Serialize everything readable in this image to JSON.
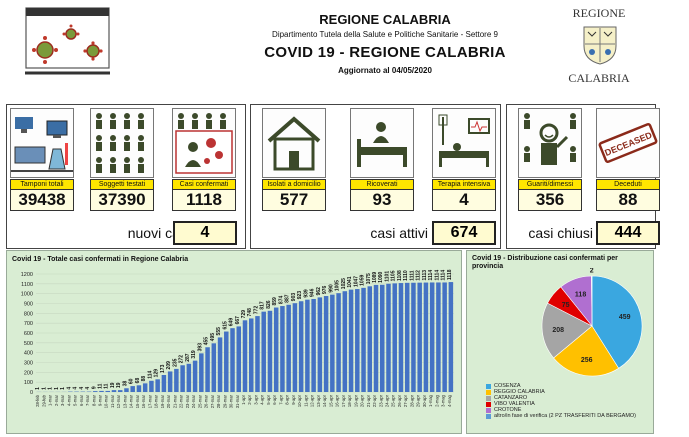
{
  "header": {
    "region": "REGIONE CALABRIA",
    "department": "Dipartimento Tutela della Salute e Politiche Sanitarie - Settore 9",
    "title": "COVID 19 - REGIONE CALABRIA",
    "updated_label": "Aggiornato al",
    "updated_date": "04/05/2020",
    "logo_top": "REGIONE",
    "logo_bottom": "CALABRIA"
  },
  "stats": [
    {
      "label": "Tamponi totali",
      "value": "39438",
      "icon": "lab-icon"
    },
    {
      "label": "Soggetti testati",
      "value": "37390",
      "icon": "people-grid-icon"
    },
    {
      "label": "Casi confermati",
      "value": "1118",
      "icon": "confirmed-case-icon"
    },
    {
      "label": "Isolati a domicilio",
      "value": "577",
      "icon": "house-icon"
    },
    {
      "label": "Ricoverati",
      "value": "93",
      "icon": "hospital-bed-icon"
    },
    {
      "label": "Terapia intensiva",
      "value": "4",
      "icon": "intensive-care-icon"
    },
    {
      "label": "Guariti/dimessi",
      "value": "356",
      "icon": "recovered-icon"
    },
    {
      "label": "Deceduti",
      "value": "88",
      "icon": "deceased-stamp-icon"
    }
  ],
  "summary": {
    "new_label": "nuovi casi",
    "new_value": "4",
    "active_label": "casi attivi",
    "active_value": "674",
    "closed_label": "casi chiusi",
    "closed_value": "444"
  },
  "deceased_stamp": "DECEASED",
  "colors": {
    "accent": "#ffe600",
    "bar": "#4472c4",
    "panel": "#d9edd3"
  },
  "chart_data": [
    {
      "type": "bar",
      "title": "Covid 19 - Totale casi confermati in Regione Calabria",
      "ylim": [
        0,
        1200
      ],
      "yticks": [
        0,
        100,
        200,
        300,
        400,
        500,
        600,
        700,
        800,
        900,
        1000,
        1100,
        1200
      ],
      "grid": true,
      "categories": [
        "28-feb",
        "29-feb",
        "1-mar",
        "2-mar",
        "3-mar",
        "4-mar",
        "5-mar",
        "6-mar",
        "7-mar",
        "8-mar",
        "9-mar",
        "10-mar",
        "11-mar",
        "12-mar",
        "13-mar",
        "14-mar",
        "15-mar",
        "16-mar",
        "17-mar",
        "18-mar",
        "19-mar",
        "20-mar",
        "21-mar",
        "22-mar",
        "23-mar",
        "24-mar",
        "25-mar",
        "26-mar",
        "27-mar",
        "28-mar",
        "29-mar",
        "30-mar",
        "31-mar",
        "1-apr",
        "2-apr",
        "3-apr",
        "4-apr",
        "5-apr",
        "6-apr",
        "7-apr",
        "8-apr",
        "9-apr",
        "10-apr",
        "11-apr",
        "12-apr",
        "13-apr",
        "14-apr",
        "15-apr",
        "16-apr",
        "17-apr",
        "18-apr",
        "19-apr",
        "20-apr",
        "21-apr",
        "22-apr",
        "23-apr",
        "24-apr",
        "25-apr",
        "26-apr",
        "27-apr",
        "28-apr",
        "29-apr",
        "30-apr",
        "1-mag",
        "2-mag",
        "3-mag",
        "4-mag"
      ],
      "values": [
        1,
        1,
        1,
        1,
        1,
        4,
        4,
        4,
        4,
        9,
        11,
        11,
        19,
        19,
        38,
        60,
        68,
        88,
        114,
        129,
        173,
        209,
        235,
        272,
        287,
        319,
        393,
        455,
        495,
        555,
        615,
        649,
        667,
        729,
        748,
        772,
        817,
        826,
        859,
        874,
        887,
        903,
        923,
        939,
        946,
        962,
        976,
        990,
        1005,
        1025,
        1041,
        1047,
        1059,
        1075,
        1089,
        1090,
        1101,
        1105,
        1108,
        1110,
        1111,
        1112,
        1113,
        1114,
        1114,
        1114,
        1118
      ]
    },
    {
      "type": "pie",
      "title": "Covid 19 - Distribuzione casi confermati per provincia",
      "legend_position": "bottom",
      "series": [
        {
          "name": "COSENZA",
          "value": 459,
          "color": "#3aa7e0"
        },
        {
          "name": "REGGIO CALABRIA",
          "value": 256,
          "color": "#ffc000"
        },
        {
          "name": "CATANZARO",
          "value": 208,
          "color": "#a5a5a5"
        },
        {
          "name": "VIBO VALENTIA",
          "value": 75,
          "color": "#e00000"
        },
        {
          "name": "CROTONE",
          "value": 118,
          "color": "#b06fd0"
        },
        {
          "name": "altro/in fase di verifica (2 PZ TRASFERITI DA BERGAMO)",
          "value": 2,
          "color": "#5b9bd5"
        }
      ]
    }
  ]
}
